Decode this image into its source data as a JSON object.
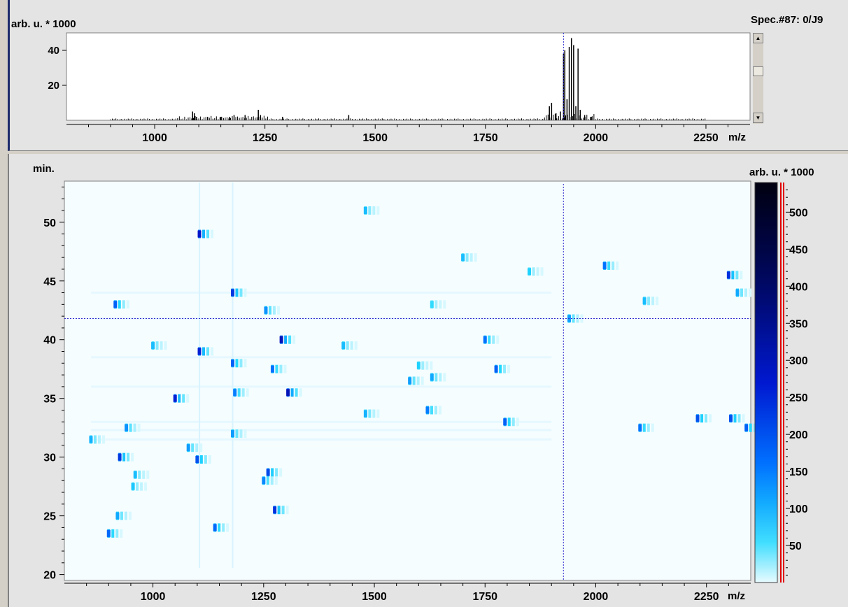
{
  "top": {
    "ylabel": "arb. u. * 1000",
    "spectrum_id": "Spec.#87: 0/J9",
    "xlabel": "m/z"
  },
  "bottom": {
    "ylabel": "min.",
    "colorbar_label": "arb. u. * 1000",
    "xlabel": "m/z"
  },
  "colors": {
    "heatmap_low": "#f5fdff",
    "heatmap_mid": "#00aaff",
    "heatmap_high": "#000030",
    "cursor": "#3030d0"
  },
  "chart_data": [
    {
      "type": "line",
      "xlabel": "m/z",
      "ylabel": "arb. u. * 1000",
      "xlim": [
        800,
        2350
      ],
      "ylim": [
        0,
        50
      ],
      "xticks": [
        1000,
        1250,
        1500,
        1750,
        2000,
        2250
      ],
      "yticks": [
        20,
        40
      ],
      "cursor_x": 1927,
      "peaks": [
        [
          1086,
          5
        ],
        [
          1090,
          4
        ],
        [
          1095,
          2
        ],
        [
          1120,
          2
        ],
        [
          1150,
          2
        ],
        [
          1170,
          2
        ],
        [
          1180,
          3
        ],
        [
          1205,
          3
        ],
        [
          1235,
          6
        ],
        [
          1240,
          3
        ],
        [
          1290,
          2
        ],
        [
          1440,
          3
        ],
        [
          1895,
          8
        ],
        [
          1900,
          10
        ],
        [
          1910,
          4
        ],
        [
          1920,
          5
        ],
        [
          1927,
          38
        ],
        [
          1930,
          40
        ],
        [
          1935,
          12
        ],
        [
          1940,
          42
        ],
        [
          1945,
          47
        ],
        [
          1950,
          43
        ],
        [
          1955,
          8
        ],
        [
          1960,
          41
        ],
        [
          1965,
          6
        ],
        [
          1975,
          3
        ],
        [
          1990,
          2
        ]
      ]
    },
    {
      "type": "heatmap",
      "xlabel": "m/z",
      "ylabel": "min.",
      "xlim": [
        800,
        2350
      ],
      "ylim": [
        19.5,
        53.5
      ],
      "xticks": [
        1000,
        1250,
        1500,
        1750,
        2000,
        2250
      ],
      "yticks": [
        20,
        25,
        30,
        35,
        40,
        45,
        50
      ],
      "colorbar_label": "arb. u. * 1000",
      "colorbar_ticks": [
        50,
        100,
        150,
        200,
        250,
        300,
        350,
        400,
        450,
        500
      ],
      "colorbar_range": [
        0,
        540
      ],
      "cursor": {
        "x": 1927,
        "y": 41.8
      },
      "spots": [
        [
          1105,
          49,
          280
        ],
        [
          1180,
          44,
          230
        ],
        [
          915,
          43,
          180
        ],
        [
          1255,
          42.5,
          130
        ],
        [
          1290,
          40,
          300
        ],
        [
          1105,
          39,
          260
        ],
        [
          1180,
          38,
          180
        ],
        [
          1050,
          35,
          260
        ],
        [
          1305,
          35.5,
          300
        ],
        [
          1270,
          37.5,
          160
        ],
        [
          1185,
          35.5,
          150
        ],
        [
          925,
          30,
          230
        ],
        [
          1100,
          29.8,
          200
        ],
        [
          1260,
          28.7,
          210
        ],
        [
          1250,
          28,
          140
        ],
        [
          1275,
          25.5,
          240
        ],
        [
          1140,
          24,
          170
        ],
        [
          900,
          23.5,
          170
        ],
        [
          940,
          32.5,
          130
        ],
        [
          1180,
          32,
          120
        ],
        [
          1750,
          40,
          160
        ],
        [
          1775,
          37.5,
          180
        ],
        [
          1795,
          33,
          180
        ],
        [
          2020,
          46.3,
          160
        ],
        [
          2300,
          45.5,
          240
        ],
        [
          2100,
          32.5,
          160
        ],
        [
          2230,
          33.3,
          200
        ],
        [
          2340,
          32.5,
          180
        ],
        [
          2305,
          33.3,
          200
        ],
        [
          1480,
          51,
          90
        ],
        [
          1700,
          47,
          90
        ],
        [
          1580,
          36.5,
          120
        ],
        [
          1630,
          36.8,
          110
        ],
        [
          1620,
          34,
          150
        ],
        [
          1480,
          33.7,
          100
        ],
        [
          1430,
          39.5,
          90
        ],
        [
          1940,
          41.8,
          120
        ],
        [
          2320,
          44,
          110
        ],
        [
          1080,
          30.8,
          120
        ],
        [
          860,
          31.5,
          100
        ],
        [
          960,
          28.5,
          90
        ],
        [
          955,
          27.5,
          80
        ],
        [
          1000,
          39.5,
          90
        ],
        [
          920,
          25,
          110
        ],
        [
          2110,
          43.3,
          90
        ],
        [
          1600,
          37.8,
          70
        ],
        [
          1630,
          43,
          60
        ],
        [
          1850,
          45.8,
          70
        ]
      ]
    }
  ]
}
